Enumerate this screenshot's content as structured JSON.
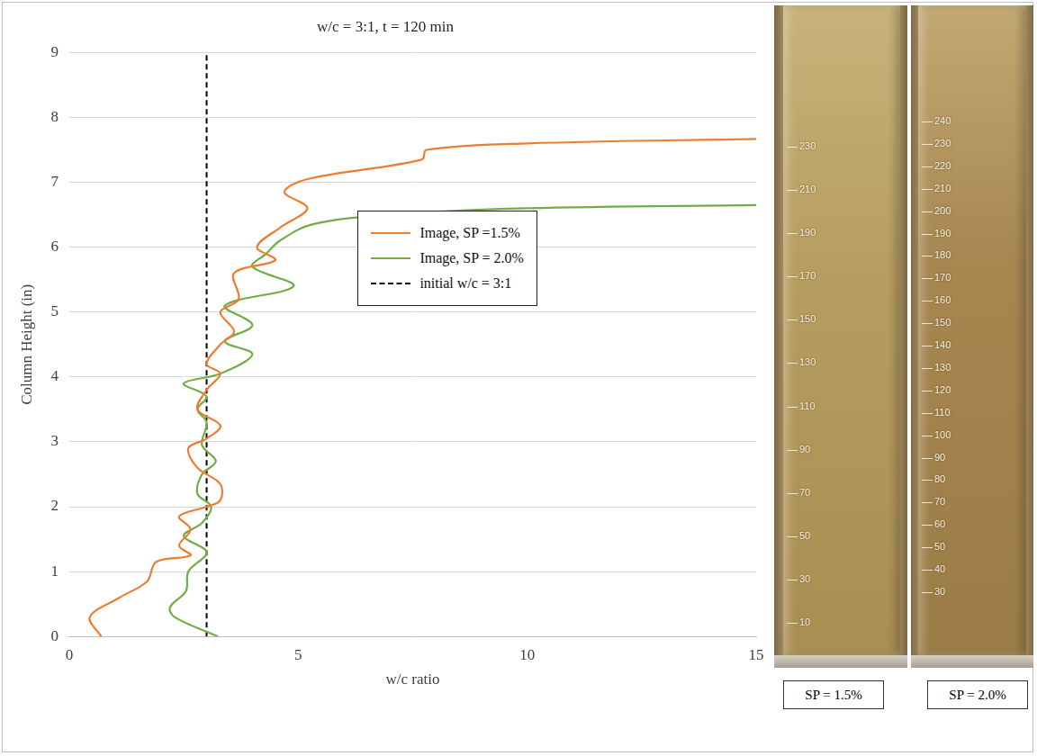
{
  "chart_data": {
    "type": "line",
    "title": "w/c = 3:1, t = 120 min",
    "x_label": "w/c ratio",
    "y_label": "Column Height (in)",
    "xlim": [
      0,
      15
    ],
    "xticks": [
      0,
      5,
      10,
      15
    ],
    "ylim": [
      0,
      9
    ],
    "yticks": [
      0,
      1,
      2,
      3,
      4,
      5,
      6,
      7,
      8,
      9
    ],
    "grid": true,
    "legend": "center",
    "series": [
      {
        "name": "Image, SP =1.5%",
        "color": "#ed7d31",
        "line_style": "solid",
        "x": [
          0.7,
          0.45,
          1.1,
          1.7,
          1.9,
          2.65,
          2.4,
          2.65,
          2.4,
          3.0,
          3.3,
          3.3,
          2.8,
          2.6,
          3.0,
          3.3,
          2.8,
          3.0,
          3.3,
          3.0,
          3.3,
          3.6,
          3.3,
          3.7,
          3.6,
          4.5,
          4.1,
          4.6,
          5.2,
          4.7,
          5.2,
          7.7,
          7.8,
          10.0,
          15.0
        ],
        "y": [
          0.0,
          0.3,
          0.6,
          0.85,
          1.15,
          1.25,
          1.4,
          1.65,
          1.85,
          2.0,
          2.1,
          2.35,
          2.6,
          2.9,
          3.05,
          3.25,
          3.5,
          3.8,
          4.05,
          4.2,
          4.5,
          4.7,
          5.0,
          5.2,
          5.6,
          5.8,
          6.0,
          6.3,
          6.6,
          6.85,
          7.05,
          7.35,
          7.5,
          7.6,
          7.67
        ]
      },
      {
        "name": "Image, SP = 2.0%",
        "color": "#70ad47",
        "line_style": "solid",
        "x": [
          3.25,
          2.3,
          2.2,
          2.55,
          2.6,
          3.0,
          2.5,
          2.9,
          3.1,
          2.8,
          2.9,
          3.2,
          2.9,
          3.0,
          2.8,
          3.0,
          2.5,
          3.3,
          4.0,
          3.4,
          4.0,
          3.4,
          4.9,
          4.0,
          4.3,
          4.6,
          5.3,
          7.0,
          10.0,
          15.0
        ],
        "y": [
          0.0,
          0.3,
          0.45,
          0.7,
          1.0,
          1.3,
          1.55,
          1.75,
          2.0,
          2.2,
          2.5,
          2.7,
          2.95,
          3.3,
          3.5,
          3.7,
          3.9,
          4.05,
          4.35,
          4.55,
          4.8,
          5.1,
          5.4,
          5.7,
          5.9,
          6.1,
          6.35,
          6.5,
          6.6,
          6.65
        ]
      },
      {
        "name": "initial w/c = 3:1",
        "color": "#000000",
        "line_style": "dashed",
        "x": [
          3,
          3
        ],
        "y": [
          0,
          9
        ]
      }
    ]
  },
  "images": [
    {
      "caption": "SP = 1.5%",
      "scale_marks": [
        10,
        30,
        50,
        70,
        90,
        110,
        130,
        150,
        170,
        190,
        210,
        230
      ]
    },
    {
      "caption": "SP = 2.0%",
      "scale_marks": [
        30,
        40,
        50,
        60,
        70,
        80,
        90,
        100,
        110,
        120,
        130,
        140,
        150,
        160,
        170,
        180,
        190,
        200,
        210,
        220,
        230,
        240
      ]
    }
  ]
}
